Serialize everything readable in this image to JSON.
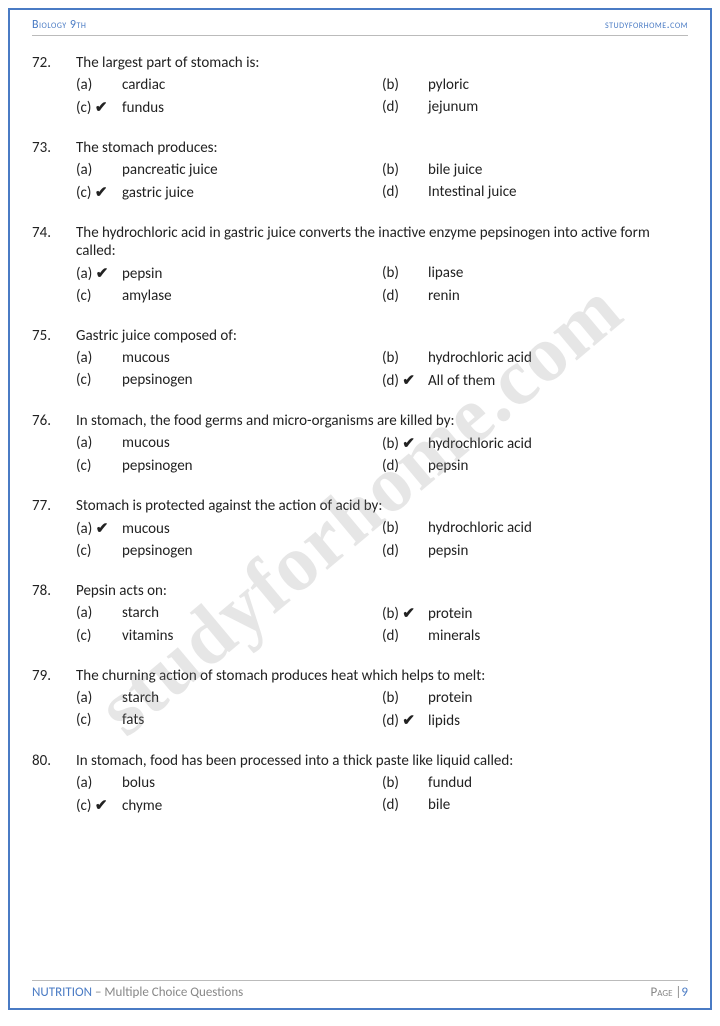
{
  "header": {
    "left": "Biology 9th",
    "right": "studyforhome.com"
  },
  "watermark": "studyforhome.com",
  "footer": {
    "topic": "NUTRITION",
    "subtitle": " – Multiple Choice Questions",
    "page_label": "Page |",
    "page_number": "9"
  },
  "option_letters": {
    "a": "(a)",
    "b": "(b)",
    "c": "(c)",
    "d": "(d)"
  },
  "check_mark": "✔",
  "questions": [
    {
      "num": "72.",
      "text": "The largest part of stomach is:",
      "opts": {
        "a": "cardiac",
        "b": "pyloric",
        "c": "fundus",
        "d": "jejunum"
      },
      "correct": "c"
    },
    {
      "num": "73.",
      "text": "The stomach produces:",
      "opts": {
        "a": "pancreatic juice",
        "b": "bile juice",
        "c": "gastric juice",
        "d": "Intestinal juice"
      },
      "correct": "c"
    },
    {
      "num": "74.",
      "text": "The hydrochloric acid in gastric juice converts the inactive enzyme pepsinogen into active form called:",
      "opts": {
        "a": "pepsin",
        "b": "lipase",
        "c": "amylase",
        "d": "renin"
      },
      "correct": "a"
    },
    {
      "num": "75.",
      "text": "Gastric juice composed of:",
      "opts": {
        "a": "mucous",
        "b": "hydrochloric acid",
        "c": "pepsinogen",
        "d": "All of them"
      },
      "correct": "d"
    },
    {
      "num": "76.",
      "text": "In stomach, the food germs and micro-organisms are killed by:",
      "opts": {
        "a": "mucous",
        "b": "hydrochloric acid",
        "c": "pepsinogen",
        "d": "pepsin"
      },
      "correct": "b"
    },
    {
      "num": "77.",
      "text": "Stomach is protected against the action of acid by:",
      "opts": {
        "a": "mucous",
        "b": "hydrochloric acid",
        "c": "pepsinogen",
        "d": "pepsin"
      },
      "correct": "a"
    },
    {
      "num": "78.",
      "text": "Pepsin acts on:",
      "opts": {
        "a": "starch",
        "b": "protein",
        "c": "vitamins",
        "d": "minerals"
      },
      "correct": "b"
    },
    {
      "num": "79.",
      "text": "The churning action of stomach produces heat which helps to melt:",
      "opts": {
        "a": "starch",
        "b": "protein",
        "c": "fats",
        "d": "lipids"
      },
      "correct": "d"
    },
    {
      "num": "80.",
      "text": "In stomach, food has been processed into a thick paste like liquid called:",
      "opts": {
        "a": "bolus",
        "b": "fundud",
        "c": "chyme",
        "d": "bile"
      },
      "correct": "c"
    }
  ]
}
